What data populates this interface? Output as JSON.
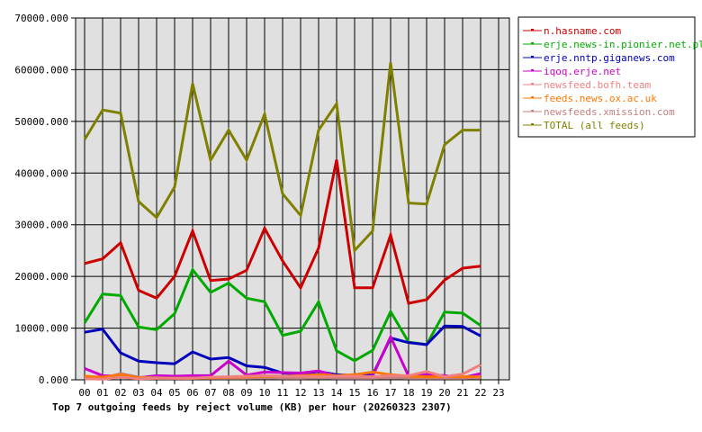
{
  "chart_data": {
    "type": "line",
    "title": "Top 7 outgoing feeds by reject volume (KB) per hour (20260323 2307)",
    "xlabel": "",
    "ylabel": "",
    "ylim": [
      0,
      70000
    ],
    "grid": true,
    "legend_position": "right",
    "y_ticks": [
      "0.000",
      "10000.000",
      "20000.000",
      "30000.000",
      "40000.000",
      "50000.000",
      "60000.000",
      "70000.000"
    ],
    "x_ticks": [
      "00",
      "01",
      "02",
      "03",
      "04",
      "05",
      "06",
      "07",
      "08",
      "09",
      "10",
      "11",
      "12",
      "13",
      "14",
      "15",
      "16",
      "17",
      "18",
      "19",
      "20",
      "21",
      "22",
      "23"
    ],
    "categories": [
      "00",
      "01",
      "02",
      "03",
      "04",
      "05",
      "06",
      "07",
      "08",
      "09",
      "10",
      "11",
      "12",
      "13",
      "14",
      "15",
      "16",
      "17",
      "18",
      "19",
      "20",
      "21",
      "22"
    ],
    "series": [
      {
        "name": "n.hasname.com",
        "color": "#cc0000",
        "values": [
          22500,
          23400,
          26500,
          17300,
          15800,
          20000,
          28800,
          19200,
          19500,
          21200,
          29300,
          23000,
          17800,
          25500,
          42600,
          17800,
          17800,
          28000,
          14800,
          15500,
          19300,
          21600,
          22000
        ]
      },
      {
        "name": "erje.news-in.pionier.net.pl",
        "color": "#00aa00",
        "values": [
          11000,
          16600,
          16300,
          10200,
          9700,
          12800,
          21300,
          16900,
          18700,
          15800,
          15100,
          8600,
          9400,
          15100,
          5600,
          3700,
          5700,
          13200,
          7300,
          6800,
          13100,
          12900,
          10500
        ]
      },
      {
        "name": "erje.nntp.giganews.com",
        "color": "#0000bb",
        "values": [
          9200,
          9800,
          5200,
          3600,
          3300,
          3100,
          5400,
          4000,
          4300,
          2700,
          2400,
          1300,
          1100,
          1600,
          1000,
          800,
          900,
          8100,
          7200,
          6800,
          10400,
          10300,
          8500
        ]
      },
      {
        "name": "iqoq.erje.net",
        "color": "#cc00cc",
        "values": [
          2200,
          800,
          700,
          400,
          800,
          700,
          800,
          800,
          3600,
          900,
          1500,
          1400,
          1300,
          1700,
          700,
          700,
          700,
          8300,
          700,
          1000,
          800,
          400,
          1200
        ]
      },
      {
        "name": "newsfeed.bofh.team",
        "color": "#f08080",
        "values": [
          200,
          100,
          500,
          200,
          300,
          300,
          300,
          500,
          600,
          700,
          800,
          700,
          700,
          600,
          700,
          700,
          600,
          800,
          800,
          1600,
          600,
          1100,
          2900
        ]
      },
      {
        "name": "feeds.news.ox.ac.uk",
        "color": "#ff7700",
        "values": [
          700,
          500,
          1000,
          400,
          300,
          300,
          300,
          400,
          500,
          600,
          700,
          700,
          800,
          1000,
          800,
          1000,
          1500,
          1000,
          700,
          600,
          600,
          600,
          600
        ]
      },
      {
        "name": "newsfeeds.xmission.com",
        "color": "#c08080",
        "values": [
          400,
          300,
          1200,
          500,
          400,
          300,
          300,
          300,
          300,
          300,
          400,
          300,
          300,
          400,
          300,
          300,
          300,
          400,
          300,
          300,
          300,
          300,
          400
        ]
      },
      {
        "name": "TOTAL (all feeds)",
        "color": "#808000",
        "values": [
          46500,
          52200,
          51600,
          34500,
          31400,
          37300,
          57300,
          42500,
          48300,
          42500,
          51400,
          36000,
          31800,
          48300,
          53400,
          25000,
          28800,
          61400,
          34200,
          34000,
          45500,
          48300,
          48300
        ]
      }
    ]
  },
  "layout": {
    "plot_bg": "#e0e0e0",
    "grid_color": "#000000"
  }
}
